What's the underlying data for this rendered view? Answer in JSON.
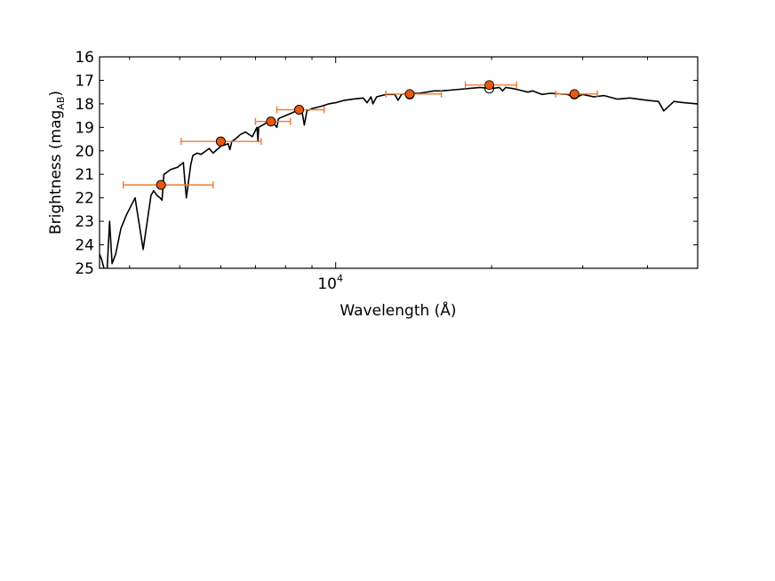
{
  "chart_data": {
    "type": "scatter",
    "xlabel": "Wavelength (Å)",
    "ylabel_main": "Brightness (mag",
    "ylabel_sub": "AB",
    "ylabel_close": ")",
    "xscale": "log",
    "xlim": [
      3500,
      50000
    ],
    "ylim": [
      25,
      16
    ],
    "y_inverted": true,
    "grid": false,
    "x_ticks": [
      {
        "value": 10000,
        "base": "10",
        "exp": "4"
      }
    ],
    "y_ticks": [
      16,
      17,
      18,
      19,
      20,
      21,
      22,
      23,
      24,
      25
    ],
    "colors": {
      "photometry": "#e8580f",
      "model": "#000000",
      "edge": "#000000",
      "errorbar": "#f07a30"
    },
    "series": [
      {
        "kind": "line",
        "x": [
          3500,
          3530,
          3560,
          3580,
          3620,
          3660,
          3700,
          3760,
          3850,
          3950,
          4100,
          4250,
          4400,
          4450,
          4520,
          4580,
          4620,
          4660,
          4700,
          4800,
          4950,
          5080,
          5110,
          5150,
          5250,
          5300,
          5400,
          5500,
          5700,
          5800,
          6000,
          6200,
          6250,
          6300,
          6400,
          6550,
          6700,
          6900,
          7050,
          7080,
          7100,
          7300,
          7400,
          7500,
          7700,
          7750,
          7800,
          8000,
          8200,
          8400,
          8600,
          8700,
          8800,
          9000,
          9200,
          9400,
          9700,
          10000,
          10400,
          10800,
          11300,
          11500,
          11700,
          11800,
          12000,
          12500,
          13000,
          13200,
          13400,
          13700,
          14500,
          15000,
          15500,
          16000,
          17000,
          18000,
          19000,
          20000,
          20700,
          21000,
          21300,
          22000,
          22500,
          23500,
          24000,
          25000,
          26000,
          28000,
          29000,
          30000,
          31500,
          33000,
          35000,
          37000,
          40000,
          42000,
          43000,
          45000,
          47000,
          50000
        ],
        "y": [
          24.4,
          24.6,
          24.9,
          25.1,
          25.1,
          23.0,
          24.8,
          24.4,
          23.3,
          22.7,
          22.0,
          24.2,
          21.9,
          21.7,
          21.9,
          22.0,
          22.1,
          21.0,
          20.95,
          20.8,
          20.7,
          20.5,
          21.2,
          22.0,
          20.6,
          20.2,
          20.1,
          20.15,
          19.9,
          20.1,
          19.8,
          19.7,
          19.95,
          19.6,
          19.5,
          19.3,
          19.2,
          19.4,
          19.0,
          19.6,
          19.0,
          18.85,
          18.75,
          18.7,
          19.0,
          18.65,
          18.6,
          18.5,
          18.4,
          18.3,
          18.25,
          18.9,
          18.3,
          18.2,
          18.15,
          18.1,
          18.0,
          17.95,
          17.85,
          17.8,
          17.75,
          17.95,
          17.7,
          18.0,
          17.7,
          17.6,
          17.6,
          17.85,
          17.6,
          17.55,
          17.55,
          17.5,
          17.45,
          17.45,
          17.4,
          17.35,
          17.3,
          17.35,
          17.3,
          17.45,
          17.3,
          17.35,
          17.4,
          17.5,
          17.45,
          17.6,
          17.55,
          17.6,
          17.75,
          17.6,
          17.7,
          17.65,
          17.8,
          17.75,
          17.85,
          17.9,
          18.3,
          17.9,
          17.95,
          18.0
        ]
      },
      {
        "kind": "model_points",
        "x": [
          4600,
          6000,
          7500,
          8500,
          13900,
          19800,
          28900
        ],
        "y": [
          21.45,
          19.6,
          18.75,
          18.25,
          17.6,
          17.35,
          17.6
        ]
      },
      {
        "kind": "observed_points",
        "x": [
          4600,
          6000,
          7500,
          8500,
          13900,
          19800,
          28900
        ],
        "y": [
          21.45,
          19.6,
          18.75,
          18.25,
          17.58,
          17.2,
          17.58
        ],
        "xerr_low": [
          3890,
          5030,
          7000,
          7700,
          12500,
          17800,
          26600
        ],
        "xerr_high": [
          5800,
          7180,
          8180,
          9500,
          16000,
          22350,
          32000
        ],
        "xerr_cap_style": "bar"
      }
    ]
  }
}
